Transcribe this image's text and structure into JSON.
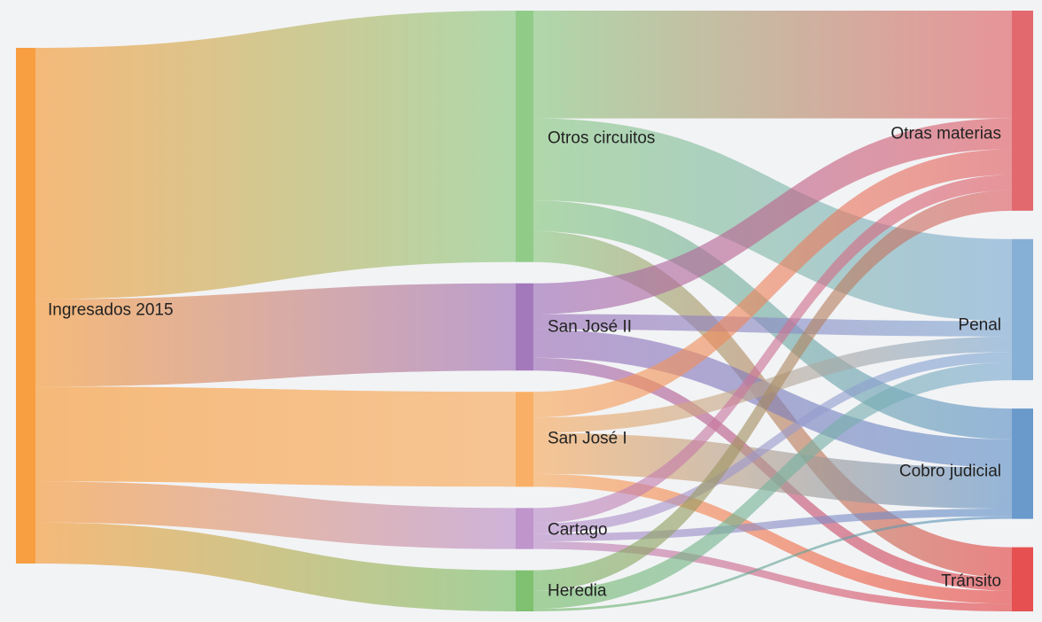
{
  "chart_data": {
    "type": "sankey",
    "unit": "share of Ingresados 2015",
    "nodes": [
      {
        "id": "ingresados",
        "label": "Ingresados 2015",
        "color": "#f7962e"
      },
      {
        "id": "otros_circuitos",
        "label": "Otros circuitos",
        "color": "#86c67c"
      },
      {
        "id": "san_jose_ii",
        "label": "San José II",
        "color": "#9b6bb6"
      },
      {
        "id": "san_jose_i",
        "label": "San José I",
        "color": "#f9a857"
      },
      {
        "id": "cartago",
        "label": "Cartago",
        "color": "#b98bc8"
      },
      {
        "id": "heredia",
        "label": "Heredia",
        "color": "#72bb63"
      },
      {
        "id": "otras_materias",
        "label": "Otras materias",
        "color": "#e05a5f"
      },
      {
        "id": "penal",
        "label": "Penal",
        "color": "#7aa8d2"
      },
      {
        "id": "cobro_judicial",
        "label": "Cobro judicial",
        "color": "#5b8fc6"
      },
      {
        "id": "transito",
        "label": "Tránsito",
        "color": "#e43e3e"
      }
    ],
    "links": [
      {
        "source": "ingresados",
        "target": "otros_circuitos",
        "value": 49
      },
      {
        "source": "ingresados",
        "target": "san_jose_ii",
        "value": 17
      },
      {
        "source": "ingresados",
        "target": "san_jose_i",
        "value": 18.5
      },
      {
        "source": "ingresados",
        "target": "cartago",
        "value": 8
      },
      {
        "source": "ingresados",
        "target": "heredia",
        "value": 8
      },
      {
        "source": "otros_circuitos",
        "target": "otras_materias",
        "value": 21
      },
      {
        "source": "otros_circuitos",
        "target": "penal",
        "value": 16
      },
      {
        "source": "otros_circuitos",
        "target": "cobro_judicial",
        "value": 6
      },
      {
        "source": "otros_circuitos",
        "target": "transito",
        "value": 6
      },
      {
        "source": "san_jose_ii",
        "target": "otras_materias",
        "value": 6
      },
      {
        "source": "san_jose_ii",
        "target": "penal",
        "value": 3
      },
      {
        "source": "san_jose_ii",
        "target": "cobro_judicial",
        "value": 5.5
      },
      {
        "source": "san_jose_ii",
        "target": "transito",
        "value": 2.5
      },
      {
        "source": "san_jose_i",
        "target": "otras_materias",
        "value": 5
      },
      {
        "source": "san_jose_i",
        "target": "penal",
        "value": 3
      },
      {
        "source": "san_jose_i",
        "target": "cobro_judicial",
        "value": 8
      },
      {
        "source": "san_jose_i",
        "target": "transito",
        "value": 2.5
      },
      {
        "source": "cartago",
        "target": "otras_materias",
        "value": 3
      },
      {
        "source": "cartago",
        "target": "penal",
        "value": 2
      },
      {
        "source": "cartago",
        "target": "cobro_judicial",
        "value": 1.5
      },
      {
        "source": "cartago",
        "target": "transito",
        "value": 1.5
      },
      {
        "source": "heredia",
        "target": "otras_materias",
        "value": 4
      },
      {
        "source": "heredia",
        "target": "penal",
        "value": 3.5
      },
      {
        "source": "heredia",
        "target": "cobro_judicial",
        "value": 0.5
      },
      {
        "source": "heredia",
        "target": "transito",
        "value": 0
      }
    ]
  }
}
